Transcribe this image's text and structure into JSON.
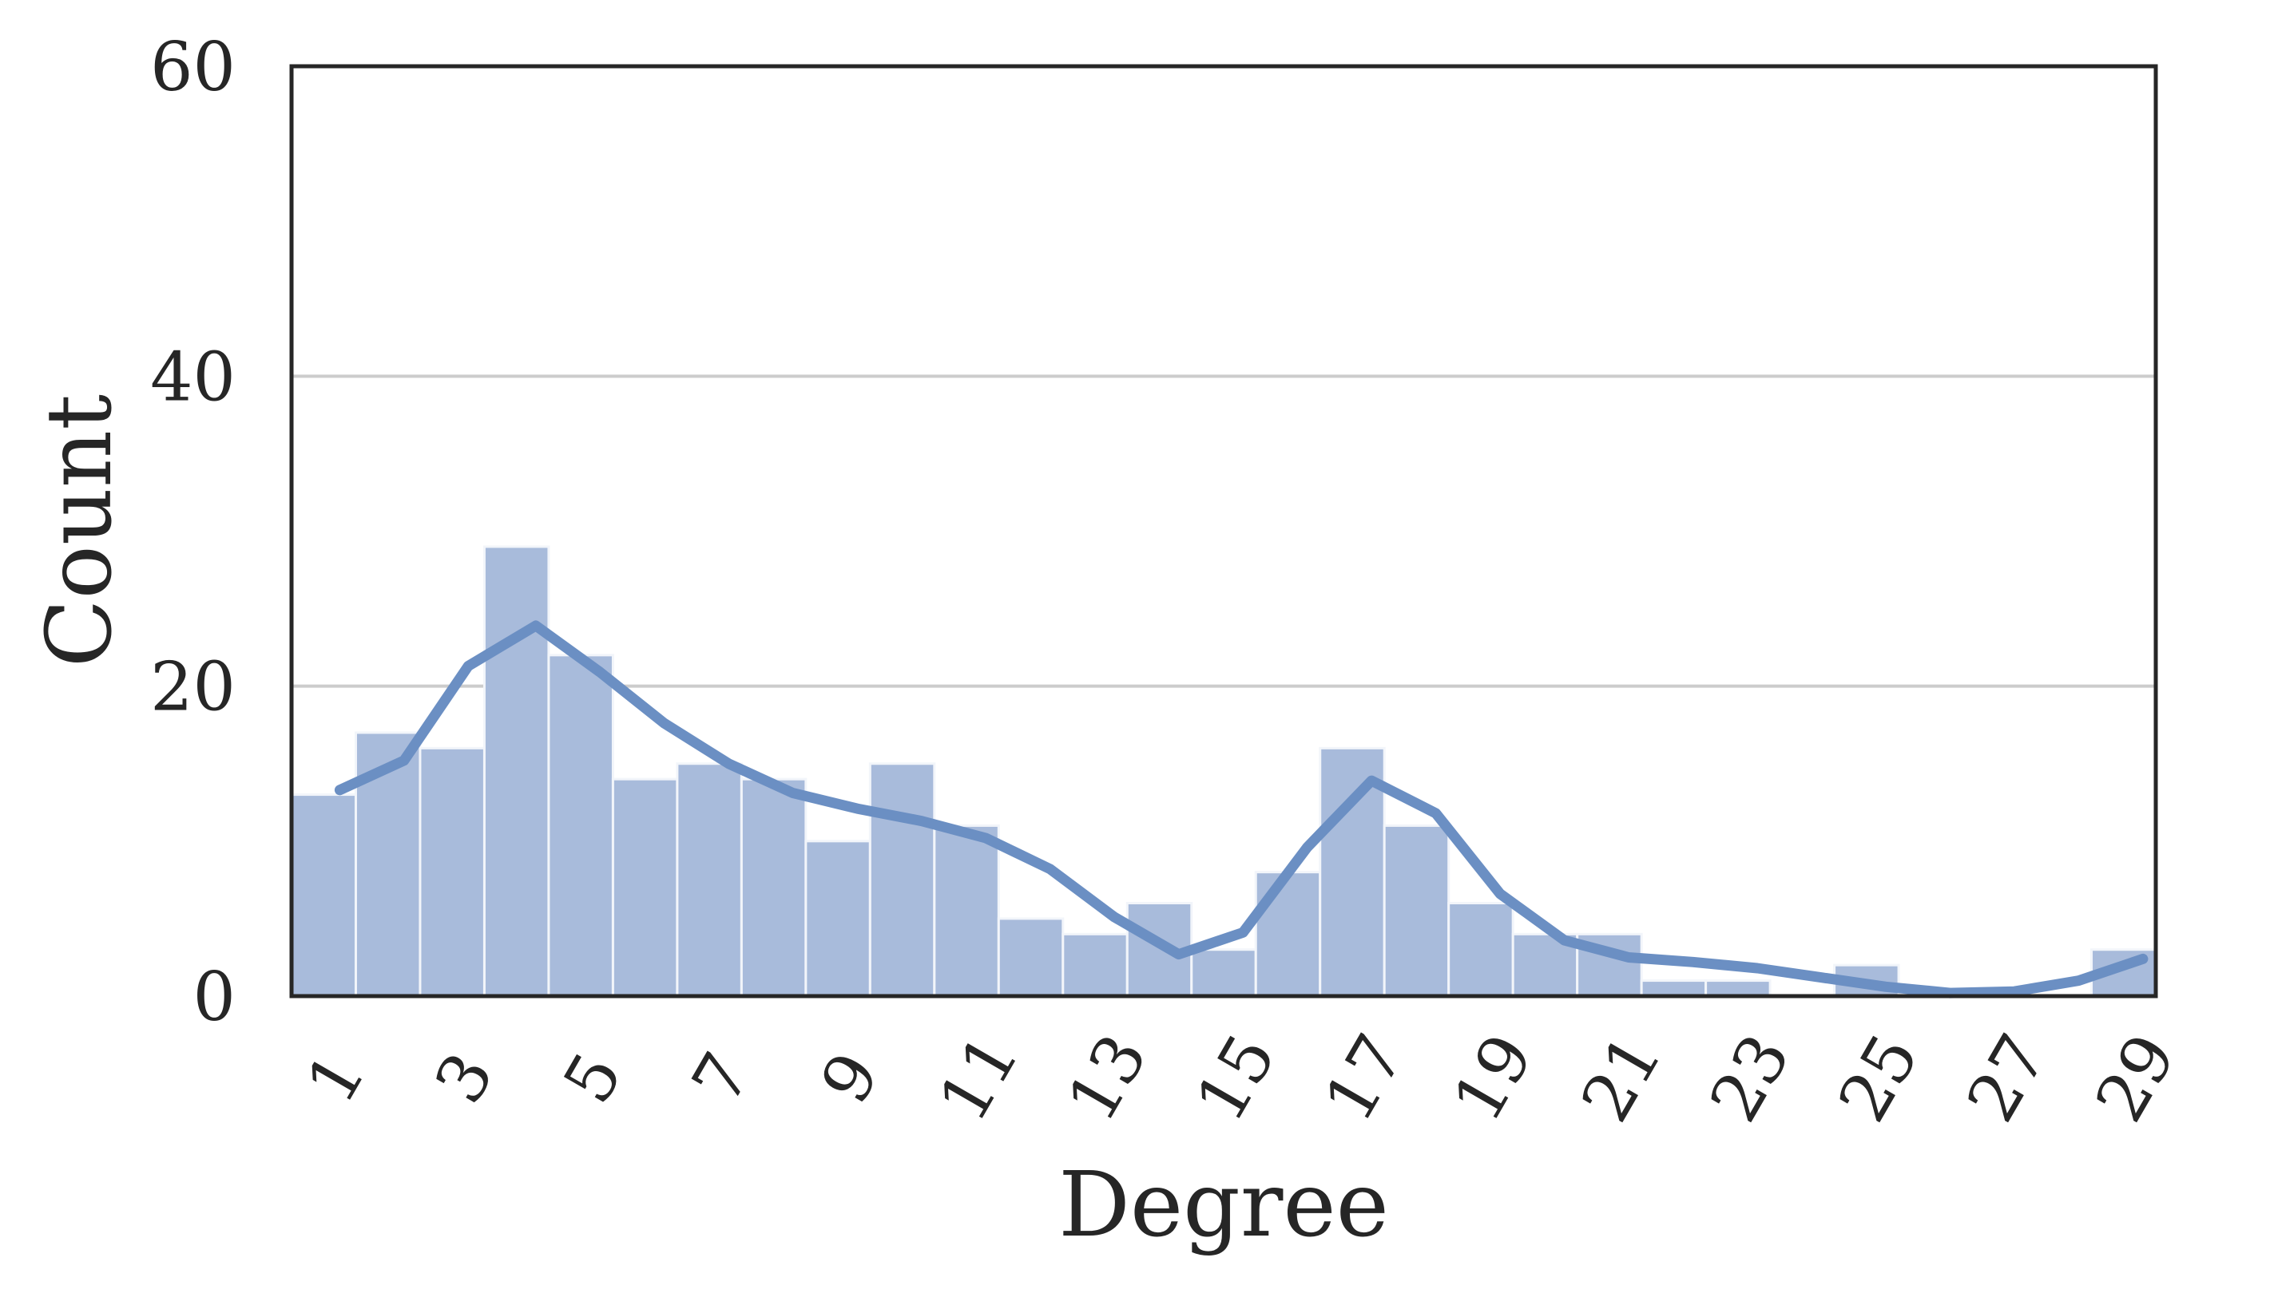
{
  "chart_data": {
    "type": "bar",
    "xlabel": "Degree",
    "ylabel": "Count",
    "ylim": [
      0,
      60
    ],
    "xlim": [
      0.5,
      29.5
    ],
    "yticks": [
      0,
      20,
      40,
      60
    ],
    "xticks": [
      1,
      3,
      5,
      7,
      9,
      11,
      13,
      15,
      17,
      19,
      21,
      23,
      25,
      27,
      29
    ],
    "grid": "horizontal",
    "series": [
      {
        "type": "bar",
        "x": [
          1,
          2,
          3,
          4,
          5,
          6,
          7,
          8,
          9,
          10,
          11,
          12,
          13,
          14,
          15,
          16,
          17,
          18,
          19,
          20,
          21,
          22,
          23,
          24,
          25,
          26,
          27,
          28,
          29
        ],
        "values": [
          13,
          17,
          16,
          29,
          22,
          14,
          15,
          14,
          10,
          15,
          11,
          5,
          4,
          6,
          3,
          8,
          16,
          11,
          6,
          4,
          4,
          1,
          1,
          0,
          2,
          0,
          0,
          0,
          3
        ]
      },
      {
        "type": "line",
        "x": [
          1.25,
          2.25,
          3.25,
          4.3,
          5.3,
          6.3,
          7.3,
          8.3,
          9.3,
          10.3,
          11.3,
          12.3,
          13.3,
          14.3,
          15.3,
          16.3,
          17.3,
          18.3,
          19.3,
          20.3,
          21.3,
          22.3,
          23.3,
          24.3,
          25.3,
          26.3,
          27.3,
          28.3,
          29.3
        ],
        "values": [
          13.3,
          15.2,
          21.3,
          23.9,
          20.9,
          17.6,
          15.0,
          13.1,
          12.1,
          11.3,
          10.2,
          8.2,
          5.1,
          2.7,
          4.1,
          9.6,
          13.9,
          11.8,
          6.6,
          3.6,
          2.5,
          2.2,
          1.8,
          1.2,
          0.6,
          0.2,
          0.3,
          1.0,
          2.4
        ]
      }
    ],
    "colors": {
      "bar_fill": "#a8bbdb",
      "bar_edge": "#f2f5fa",
      "line": "#6b8fc3",
      "grid": "#cccccc",
      "frame": "#262626"
    }
  }
}
